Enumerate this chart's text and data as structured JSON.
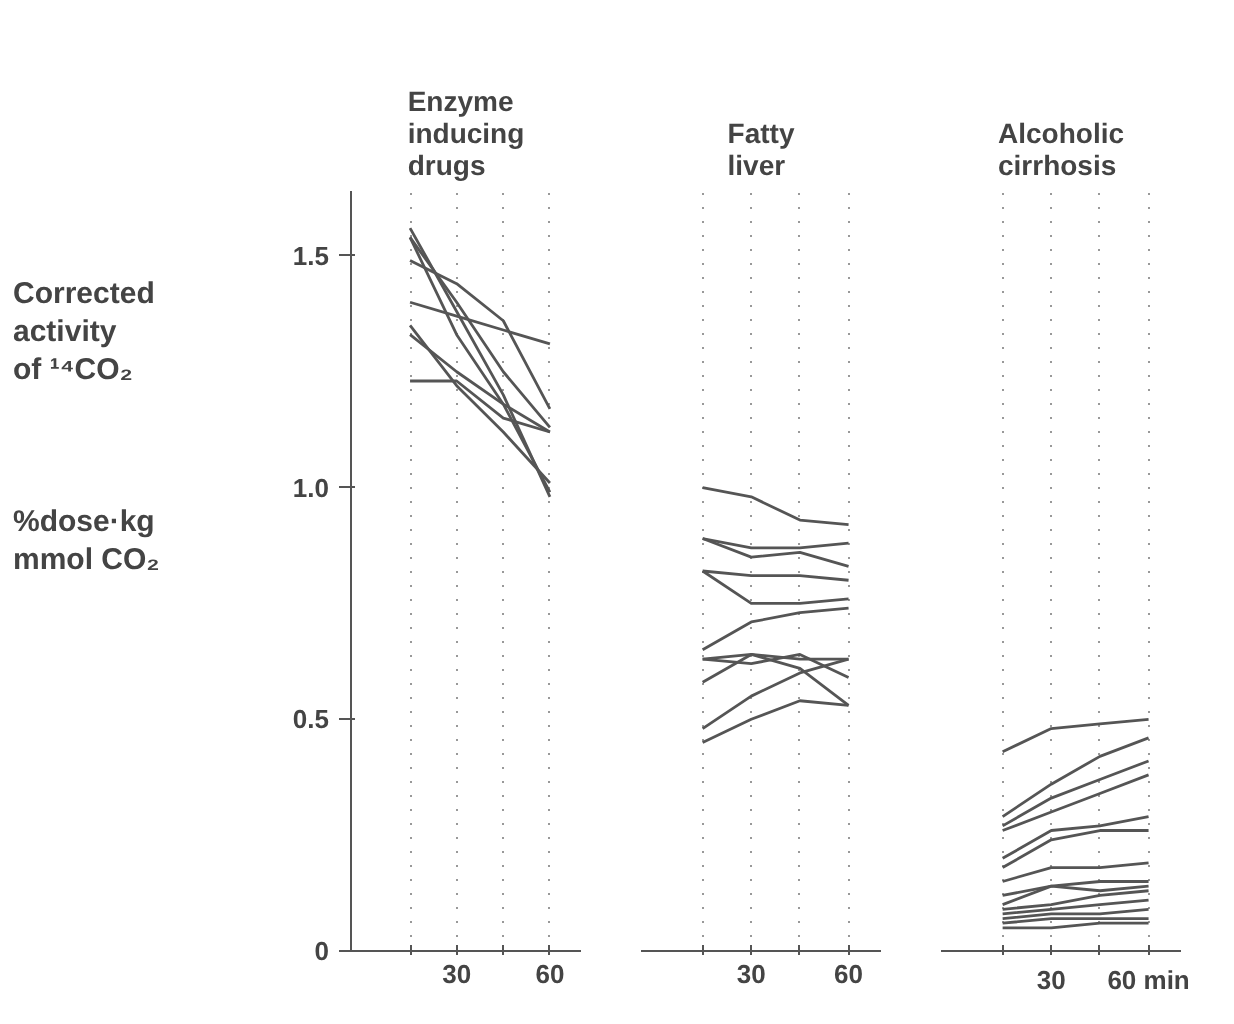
{
  "chart_data": [
    {
      "type": "line",
      "title": "Enzyme\ninducing\ndrugs",
      "ylabel": "Corrected\nactivity\nof ¹⁴CO₂\n\n\n\n%dose·kg\nmmol CO₂",
      "xlim": [
        -4,
        70
      ],
      "ylim": [
        0,
        1.64
      ],
      "xticks": [
        {
          "value": 15,
          "label": null
        },
        30,
        {
          "value": 45,
          "label": null
        },
        60
      ],
      "yticks": [
        0,
        0.5,
        {
          "value": 1,
          "label": "1.0"
        },
        1.5
      ],
      "grid": "x",
      "line_style": "solid",
      "x": [
        15,
        30,
        45,
        60
      ],
      "series": [
        {
          "color": "#555555",
          "values": [
            1.49,
            1.44,
            1.36,
            1.17
          ]
        },
        {
          "color": "#555555",
          "values": [
            1.56,
            1.38,
            1.2,
            0.98
          ]
        },
        {
          "color": "#555555",
          "values": [
            1.54,
            1.4,
            1.25,
            1.13
          ]
        },
        {
          "color": "#555555",
          "values": [
            1.4,
            1.37,
            1.34,
            1.31
          ]
        },
        {
          "color": "#555555",
          "values": [
            1.35,
            1.22,
            1.12,
            1.01
          ]
        },
        {
          "color": "#555555",
          "values": [
            1.33,
            1.25,
            1.18,
            1.12
          ]
        },
        {
          "color": "#555555",
          "values": [
            1.23,
            1.23,
            1.15,
            1.12
          ]
        },
        {
          "color": "#555555",
          "values": [
            1.54,
            1.33,
            1.18,
            0.99
          ]
        }
      ]
    },
    {
      "type": "line",
      "title": "Fatty\nliver",
      "xlim": [
        -4,
        70
      ],
      "ylim": [
        0,
        1.64
      ],
      "xticks": [
        {
          "value": 15,
          "label": null
        },
        30,
        {
          "value": 45,
          "label": null
        },
        60
      ],
      "grid": "x",
      "tick_labels": "x",
      "line_style": "solid",
      "x": [
        15,
        30,
        45,
        60
      ],
      "series": [
        {
          "color": "#555555",
          "values": [
            1.0,
            0.98,
            0.93,
            0.92
          ]
        },
        {
          "color": "#555555",
          "values": [
            0.89,
            0.87,
            0.87,
            0.88
          ]
        },
        {
          "color": "#555555",
          "values": [
            0.89,
            0.85,
            0.86,
            0.83
          ]
        },
        {
          "color": "#555555",
          "values": [
            0.82,
            0.81,
            0.81,
            0.8
          ]
        },
        {
          "color": "#555555",
          "values": [
            0.82,
            0.75,
            0.75,
            0.76
          ]
        },
        {
          "color": "#555555",
          "values": [
            0.65,
            0.71,
            0.73,
            0.74
          ]
        },
        {
          "color": "#555555",
          "values": [
            0.63,
            0.62,
            0.64,
            0.59
          ]
        },
        {
          "color": "#555555",
          "values": [
            0.58,
            0.64,
            0.63,
            0.63
          ]
        },
        {
          "color": "#555555",
          "values": [
            0.63,
            0.64,
            0.61,
            0.53
          ]
        },
        {
          "color": "#555555",
          "values": [
            0.48,
            0.55,
            0.6,
            0.63
          ]
        },
        {
          "color": "#555555",
          "values": [
            0.45,
            0.5,
            0.54,
            0.53
          ]
        }
      ]
    },
    {
      "type": "line",
      "title": "Alcoholic\ncirrhosis",
      "xlim": [
        -4,
        70
      ],
      "ylim": [
        0,
        1.64
      ],
      "xticks": [
        {
          "value": 15,
          "label": null
        },
        30,
        {
          "value": 45,
          "label": null
        },
        {
          "value": 60,
          "label": "60 min"
        }
      ],
      "grid": "x",
      "tick_labels": "x",
      "line_style": "solid",
      "x": [
        15,
        30,
        45,
        60
      ],
      "series": [
        {
          "color": "#555555",
          "values": [
            0.43,
            0.48,
            0.49,
            0.5
          ]
        },
        {
          "color": "#555555",
          "values": [
            0.29,
            0.36,
            0.42,
            0.46
          ]
        },
        {
          "color": "#555555",
          "values": [
            0.27,
            0.33,
            0.37,
            0.41
          ]
        },
        {
          "color": "#555555",
          "values": [
            0.26,
            0.3,
            0.34,
            0.38
          ]
        },
        {
          "color": "#555555",
          "values": [
            0.2,
            0.26,
            0.27,
            0.29
          ]
        },
        {
          "color": "#555555",
          "values": [
            0.18,
            0.24,
            0.26,
            0.26
          ]
        },
        {
          "color": "#555555",
          "values": [
            0.15,
            0.18,
            0.18,
            0.19
          ]
        },
        {
          "color": "#555555",
          "values": [
            0.12,
            0.14,
            0.15,
            0.15
          ]
        },
        {
          "color": "#555555",
          "values": [
            0.1,
            0.14,
            0.13,
            0.14
          ]
        },
        {
          "color": "#555555",
          "values": [
            0.09,
            0.1,
            0.12,
            0.13
          ]
        },
        {
          "color": "#555555",
          "values": [
            0.08,
            0.09,
            0.1,
            0.11
          ]
        },
        {
          "color": "#555555",
          "values": [
            0.07,
            0.08,
            0.08,
            0.09
          ]
        },
        {
          "color": "#555555",
          "values": [
            0.06,
            0.07,
            0.07,
            0.07
          ]
        },
        {
          "color": "#555555",
          "values": [
            0.05,
            0.05,
            0.06,
            0.06
          ]
        }
      ]
    }
  ]
}
